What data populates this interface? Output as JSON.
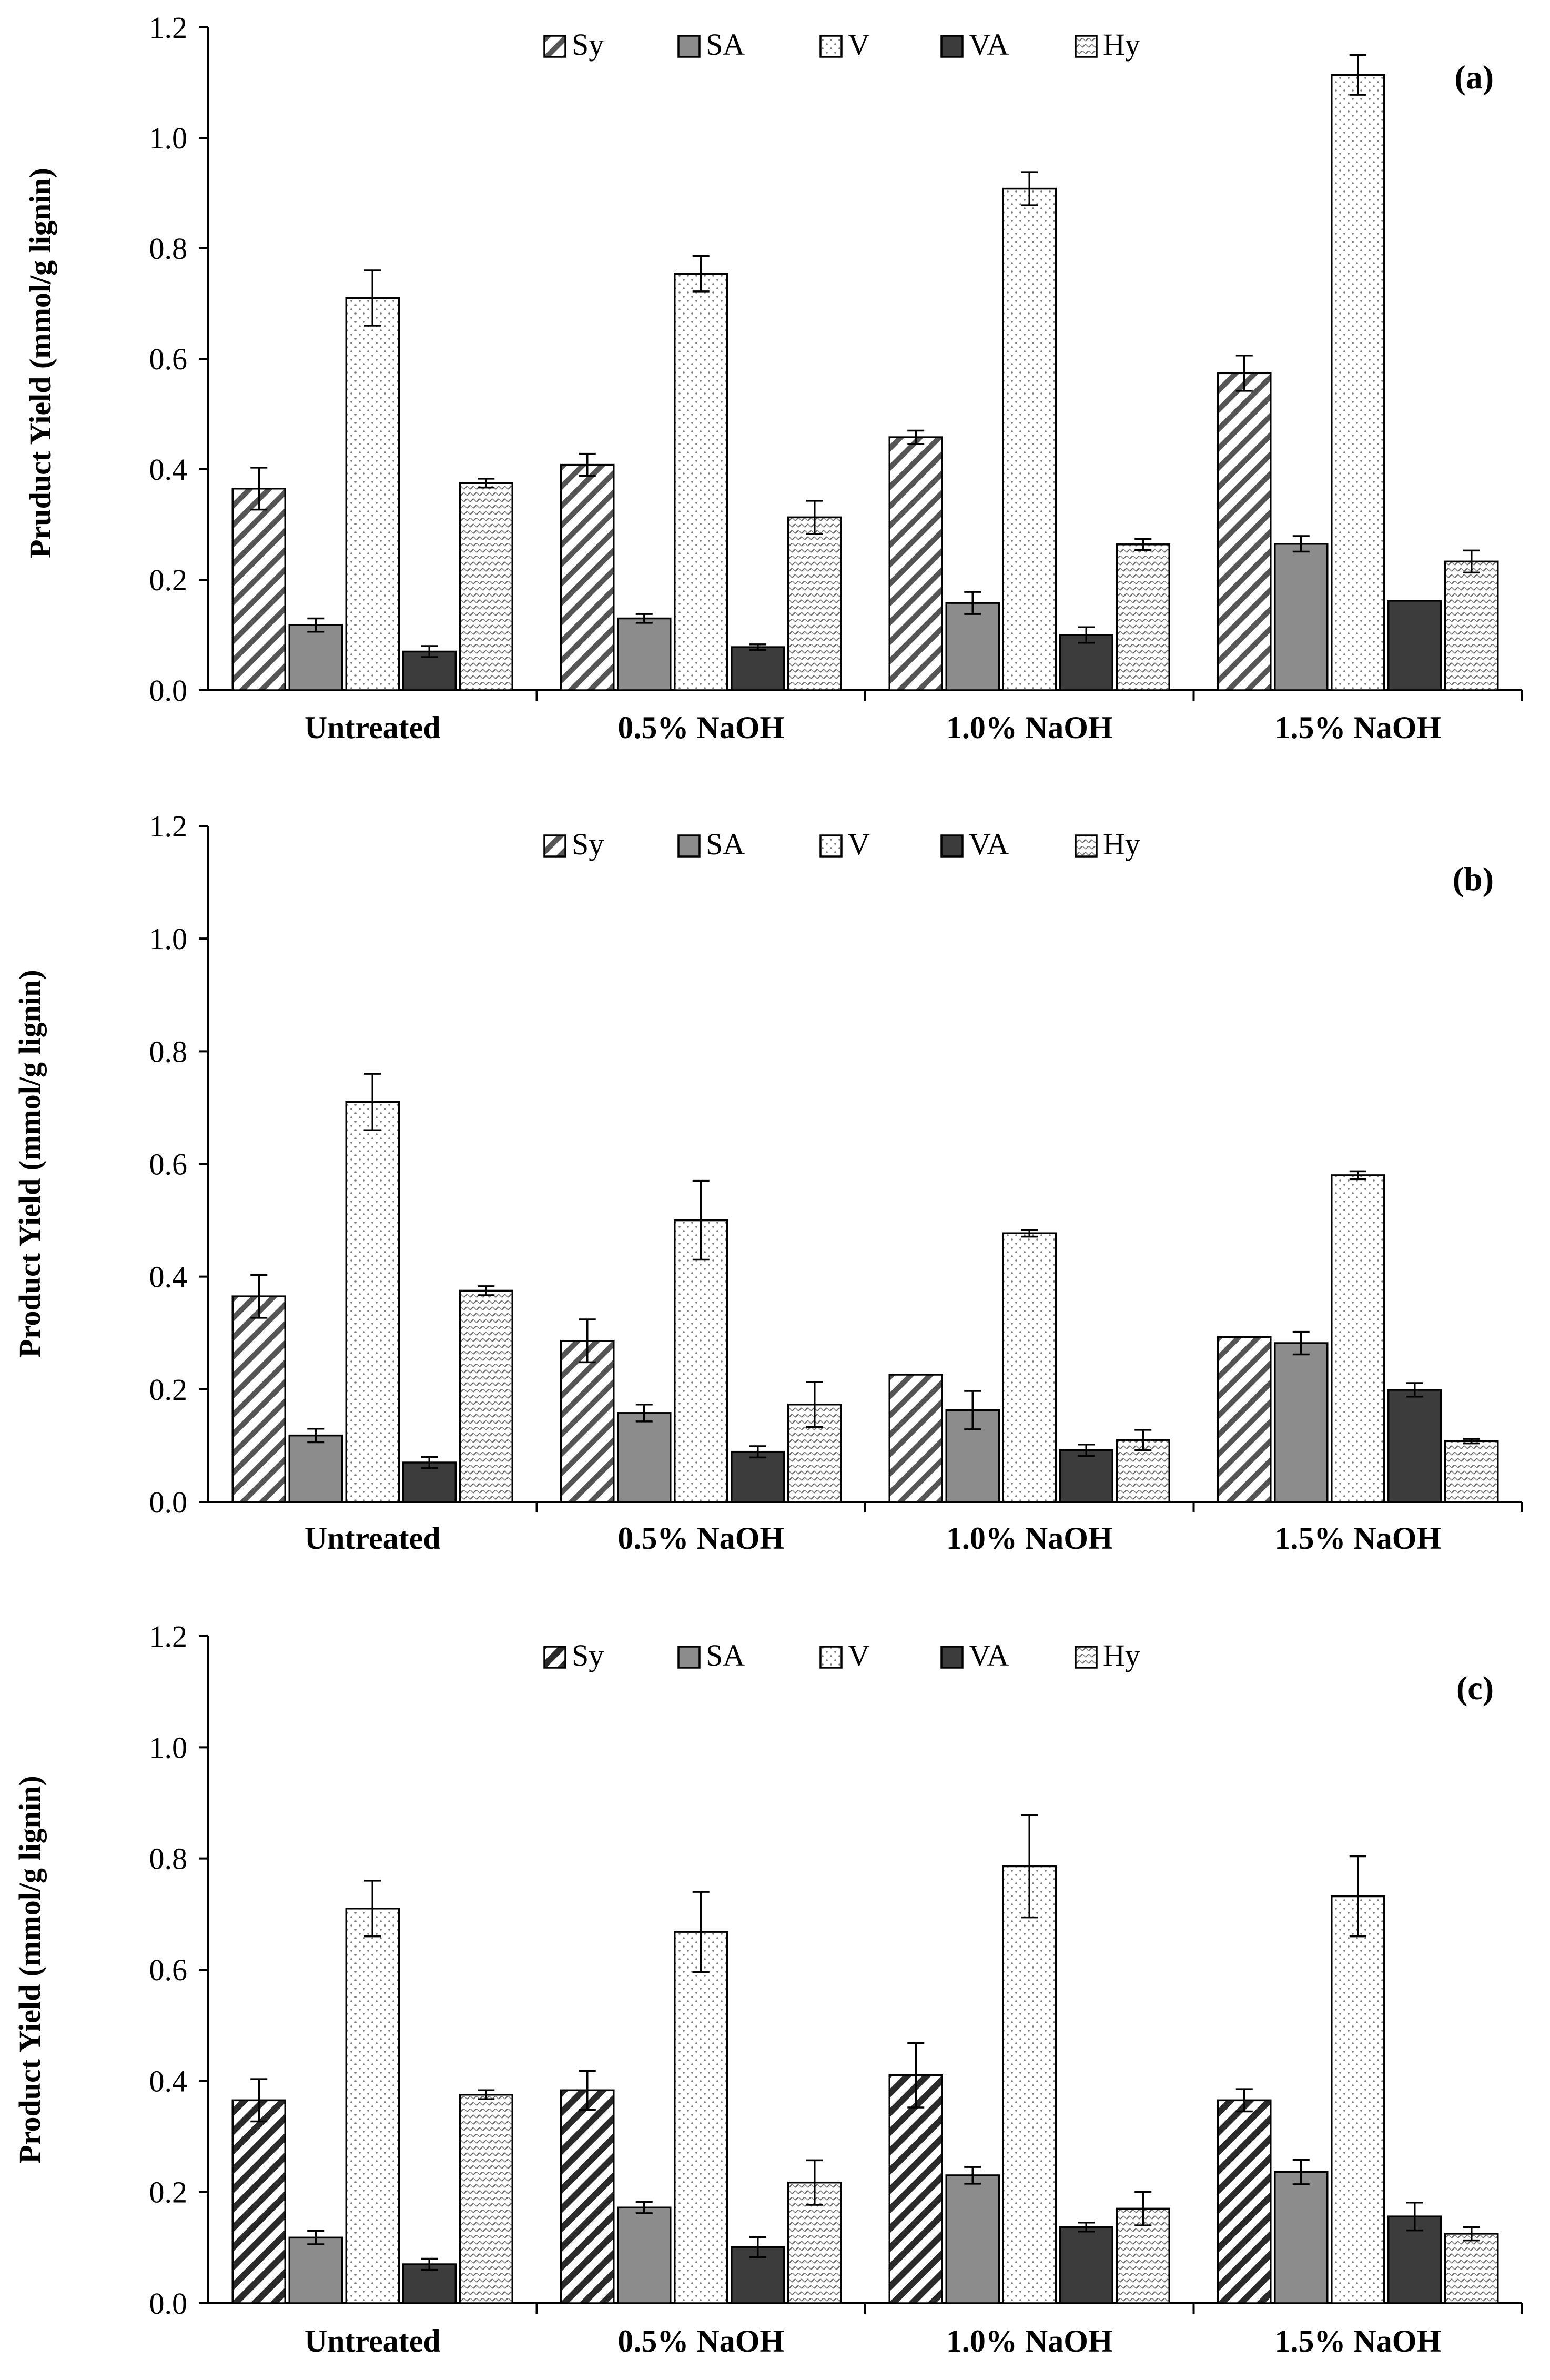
{
  "chart_data": [
    {
      "type": "bar",
      "panel": "(a)",
      "ylabel": "Pruduct  Yield (mmol/g lignin)",
      "ylim": [
        0,
        1.2
      ],
      "yticks": [
        "0.0",
        "0.2",
        "0.4",
        "0.6",
        "0.8",
        "1.0",
        "1.2"
      ],
      "categories": [
        "Untreated",
        "0.5% NaOH",
        "1.0% NaOH",
        "1.5% NaOH"
      ],
      "legend_location": "top-center",
      "series": [
        {
          "name": "Sy",
          "values": [
            0.365,
            0.408,
            0.458,
            0.574
          ],
          "errors": [
            0.038,
            0.02,
            0.012,
            0.032
          ]
        },
        {
          "name": "SA",
          "values": [
            0.118,
            0.13,
            0.158,
            0.265
          ],
          "errors": [
            0.012,
            0.008,
            0.02,
            0.014
          ]
        },
        {
          "name": "V",
          "values": [
            0.71,
            0.754,
            0.908,
            1.114
          ],
          "errors": [
            0.05,
            0.032,
            0.03,
            0.036
          ]
        },
        {
          "name": "VA",
          "values": [
            0.07,
            0.078,
            0.1,
            0.162
          ],
          "errors": [
            0.01,
            0.005,
            0.014,
            0.0
          ]
        },
        {
          "name": "Hy",
          "values": [
            0.375,
            0.313,
            0.264,
            0.233
          ],
          "errors": [
            0.008,
            0.03,
            0.01,
            0.02
          ]
        }
      ]
    },
    {
      "type": "bar",
      "panel": "(b)",
      "ylabel": "Product Yield (mmol/g lignin)",
      "ylim": [
        0,
        1.2
      ],
      "yticks": [
        "0.0",
        "0.2",
        "0.4",
        "0.6",
        "0.8",
        "1.0",
        "1.2"
      ],
      "categories": [
        "Untreated",
        "0.5% NaOH",
        "1.0% NaOH",
        "1.5% NaOH"
      ],
      "legend_location": "top-center",
      "series": [
        {
          "name": "Sy",
          "values": [
            0.365,
            0.286,
            0.226,
            0.293
          ],
          "errors": [
            0.038,
            0.038,
            0.0,
            0.0
          ]
        },
        {
          "name": "SA",
          "values": [
            0.118,
            0.158,
            0.163,
            0.282
          ],
          "errors": [
            0.012,
            0.015,
            0.034,
            0.02
          ]
        },
        {
          "name": "V",
          "values": [
            0.71,
            0.5,
            0.477,
            0.58
          ],
          "errors": [
            0.05,
            0.07,
            0.006,
            0.007
          ]
        },
        {
          "name": "VA",
          "values": [
            0.07,
            0.089,
            0.092,
            0.199
          ],
          "errors": [
            0.01,
            0.01,
            0.01,
            0.012
          ]
        },
        {
          "name": "Hy",
          "values": [
            0.375,
            0.173,
            0.11,
            0.108
          ],
          "errors": [
            0.008,
            0.04,
            0.018,
            0.004
          ]
        }
      ]
    },
    {
      "type": "bar",
      "panel": "(c)",
      "ylabel": "Product Yield (mmol/g lignin)",
      "ylim": [
        0,
        1.2
      ],
      "yticks": [
        "0.0",
        "0.2",
        "0.4",
        "0.6",
        "0.8",
        "1.0",
        "1.2"
      ],
      "categories": [
        "Untreated",
        "0.5% NaOH",
        "1.0% NaOH",
        "1.5% NaOH"
      ],
      "legend_location": "top-center",
      "series": [
        {
          "name": "Sy",
          "values": [
            0.365,
            0.383,
            0.41,
            0.365
          ],
          "errors": [
            0.038,
            0.035,
            0.058,
            0.02
          ]
        },
        {
          "name": "SA",
          "values": [
            0.118,
            0.172,
            0.23,
            0.236
          ],
          "errors": [
            0.012,
            0.01,
            0.015,
            0.022
          ]
        },
        {
          "name": "V",
          "values": [
            0.71,
            0.668,
            0.786,
            0.732
          ],
          "errors": [
            0.05,
            0.072,
            0.092,
            0.072
          ]
        },
        {
          "name": "VA",
          "values": [
            0.07,
            0.101,
            0.137,
            0.156
          ],
          "errors": [
            0.01,
            0.018,
            0.008,
            0.025
          ]
        },
        {
          "name": "Hy",
          "values": [
            0.375,
            0.217,
            0.17,
            0.125
          ],
          "errors": [
            0.008,
            0.04,
            0.03,
            0.012
          ]
        }
      ]
    }
  ]
}
